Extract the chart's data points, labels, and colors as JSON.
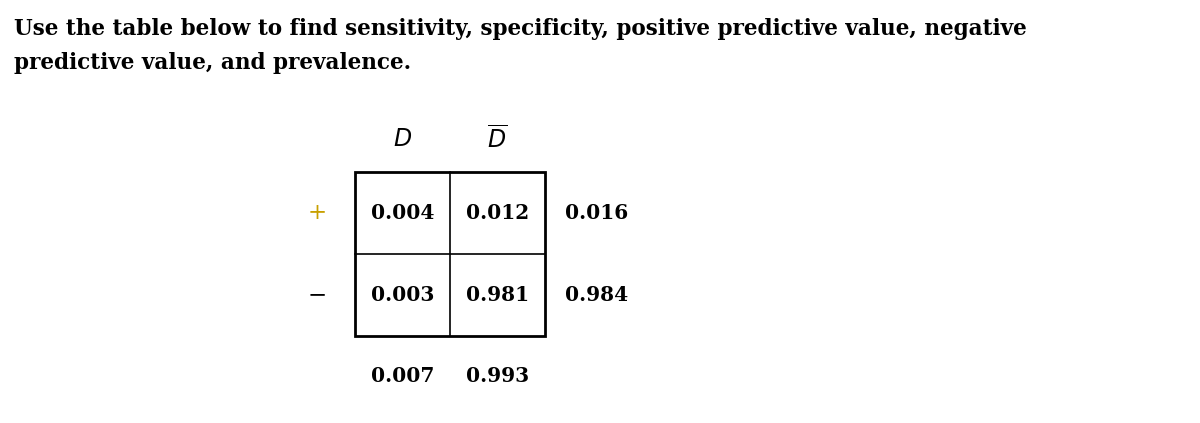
{
  "title_line1": "Use the table below to find sensitivity, specificity, positive predictive value, negative",
  "title_line2": "predictive value, and prevalence.",
  "cell_values": [
    [
      "0.004",
      "0.012",
      "0.016"
    ],
    [
      "0.003",
      "0.981",
      "0.984"
    ]
  ],
  "bottom_labels": [
    "0.007",
    "0.993"
  ],
  "row_label_plus": "+",
  "row_label_minus": "−",
  "plus_color": "#c8a000",
  "minus_color": "#000000",
  "bg_color": "#ffffff",
  "text_color": "#000000",
  "font_size_title": 15.5,
  "font_size_table": 14.5,
  "font_size_header": 15
}
